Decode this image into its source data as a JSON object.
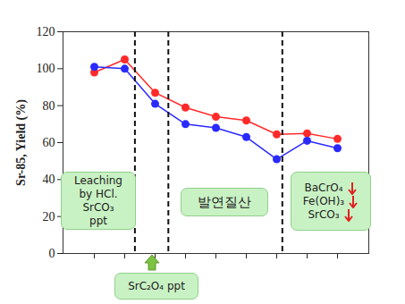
{
  "chart_data": {
    "type": "line",
    "y_label": "Sr-85, Yield (%)",
    "categories": [
      null,
      null,
      null,
      null,
      null,
      null,
      null,
      null,
      null
    ],
    "series": [
      {
        "color": "#ff2a2a",
        "marker": "circle",
        "values": [
          98,
          105,
          87,
          79,
          74,
          72,
          64.5,
          65,
          62
        ]
      },
      {
        "color": "#2a2aff",
        "marker": "circle",
        "values": [
          101,
          100,
          81,
          70,
          68,
          63,
          51,
          61,
          57
        ]
      }
    ],
    "ylim": [
      0,
      120
    ],
    "yticks": [
      0,
      20,
      40,
      60,
      80,
      100,
      120
    ],
    "dividers": [
      1.35,
      2.45,
      6.2
    ],
    "annotations": [
      {
        "text": [
          "Leaching",
          "by HCl.",
          "SrCO₃",
          "ppt"
        ]
      },
      {
        "text": [
          "SrC₂O₄ ppt"
        ]
      },
      {
        "text": [
          "발연질산"
        ]
      },
      {
        "text": [
          "BaCrO₄",
          "Fe(OH)₃",
          "SrCO₃"
        ]
      }
    ],
    "tick_labels": "y"
  }
}
